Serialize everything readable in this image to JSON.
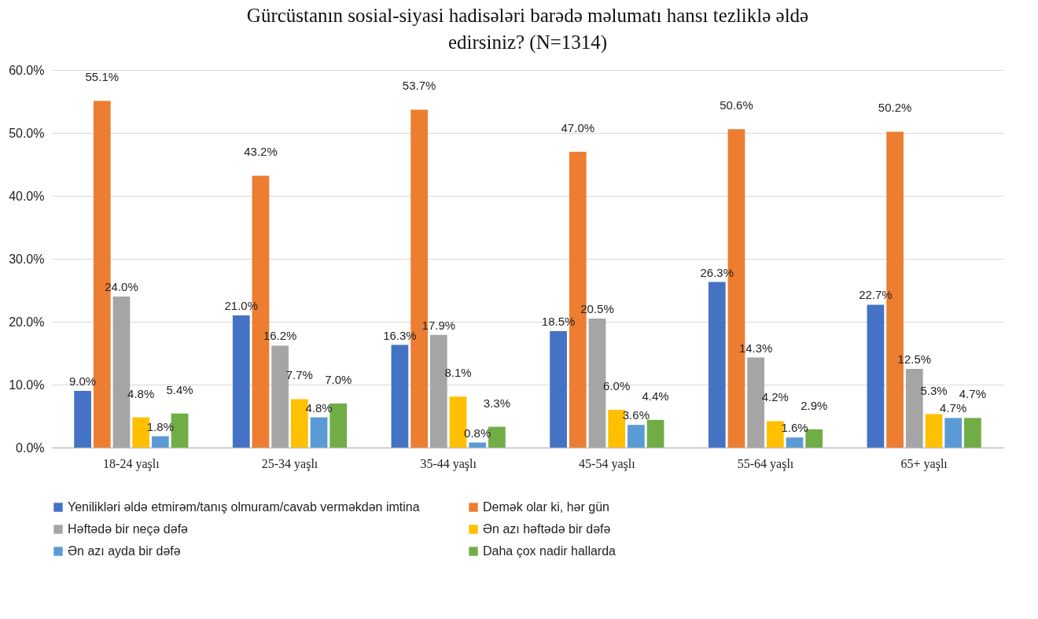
{
  "chart_data": {
    "type": "bar",
    "title": "Gürcüstanın sosial-siyasi hadisələri barədə məlumatı hansı tezliklə əldə edirsiniz? (N=1314)",
    "categories": [
      "18-24 yaşlı",
      "25-34 yaşlı",
      "35-44 yaşlı",
      "45-54 yaşlı",
      "55-64 yaşlı",
      "65+ yaşlı"
    ],
    "series": [
      {
        "name": "Yenilikləri əldə etmirəm/tanış olmuram/cavab verməkdən imtina",
        "color": "#4472c4",
        "values": [
          9.0,
          21.0,
          16.3,
          18.5,
          26.3,
          22.7
        ],
        "value_labels": [
          "9.0%",
          "21.0%",
          "16.3%",
          "18.5%",
          "26.3%",
          "22.7%"
        ]
      },
      {
        "name": "Demək olar ki, hər gün",
        "color": "#ed7d31",
        "values": [
          55.1,
          43.2,
          53.7,
          47.0,
          50.6,
          50.2
        ],
        "value_labels": [
          "55.1%",
          "43.2%",
          "53.7%",
          "47.0%",
          "50.6%",
          "50.2%"
        ]
      },
      {
        "name": "Həftədə bir neçə dəfə",
        "color": "#a5a5a5",
        "values": [
          24.0,
          16.2,
          17.9,
          20.5,
          14.3,
          12.5
        ],
        "value_labels": [
          "24.0%",
          "16.2%",
          "17.9%",
          "20.5%",
          "14.3%",
          "12.5%"
        ]
      },
      {
        "name": "Ən azı həftədə bir dəfə",
        "color": "#ffc000",
        "values": [
          4.8,
          7.7,
          8.1,
          6.0,
          4.2,
          5.3
        ],
        "value_labels": [
          "4.8%",
          "7.7%",
          "8.1%",
          "6.0%",
          "4.2%",
          "5.3%"
        ]
      },
      {
        "name": "Ən azı ayda bir dəfə",
        "color": "#5b9bd5",
        "values": [
          1.8,
          4.8,
          0.8,
          3.6,
          1.6,
          4.7
        ],
        "value_labels": [
          "1.8%",
          "4.8%",
          "0.8%",
          "3.6%",
          "1.6%",
          "4.7%"
        ]
      },
      {
        "name": "Daha çox nadir hallarda",
        "color": "#70ad47",
        "values": [
          5.4,
          7.0,
          3.3,
          4.4,
          2.9,
          4.7
        ],
        "value_labels": [
          "5.4%",
          "7.0%",
          "3.3%",
          "4.4%",
          "2.9%",
          "4.7%"
        ]
      }
    ],
    "ylim": [
      0,
      60
    ],
    "yticks": [
      {
        "value": 0,
        "label": "0.0%"
      },
      {
        "value": 10,
        "label": "10.0%"
      },
      {
        "value": 20,
        "label": "20.0%"
      },
      {
        "value": 30,
        "label": "30.0%"
      },
      {
        "value": 40,
        "label": "40.0%"
      },
      {
        "value": 50,
        "label": "50.0%"
      },
      {
        "value": 60,
        "label": "60.0%"
      }
    ],
    "grid": "y",
    "legend": "bottom"
  }
}
